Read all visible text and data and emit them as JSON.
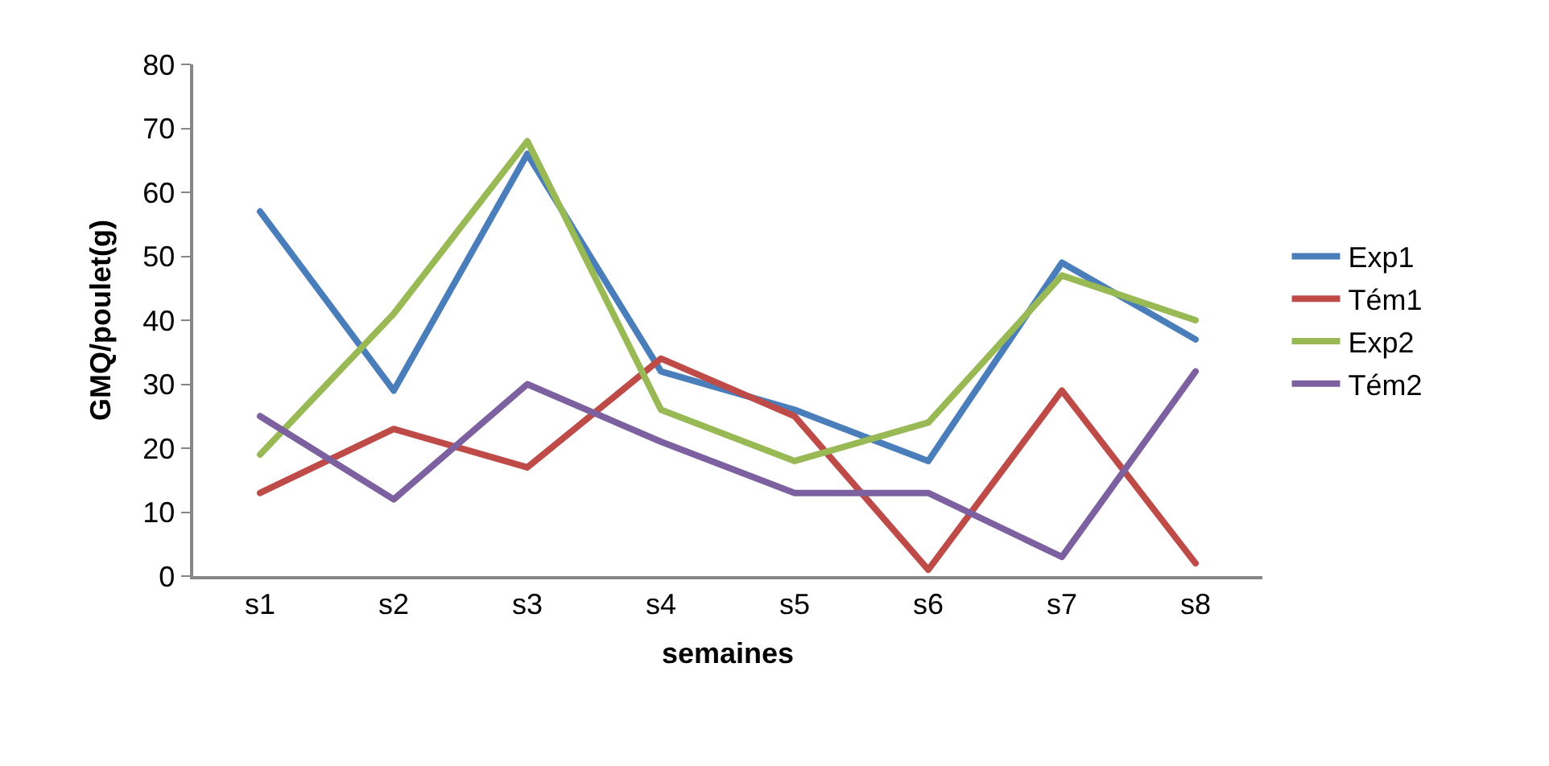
{
  "chart_data": {
    "type": "line",
    "xlabel": "semaines",
    "ylabel": "GMQ/poulet(g)",
    "categories": [
      "s1",
      "s2",
      "s3",
      "s4",
      "s5",
      "s6",
      "s7",
      "s8"
    ],
    "series": [
      {
        "name": "Exp1",
        "color": "#4a7ebb",
        "values": [
          57,
          29,
          66,
          32,
          26,
          18,
          49,
          37
        ]
      },
      {
        "name": "Tém1",
        "color": "#be4b48",
        "values": [
          13,
          23,
          17,
          34,
          25,
          1,
          29,
          2
        ]
      },
      {
        "name": "Exp2",
        "color": "#98b954",
        "values": [
          19,
          41,
          68,
          26,
          18,
          24,
          47,
          40
        ]
      },
      {
        "name": "Tém2",
        "color": "#7d60a0",
        "values": [
          25,
          12,
          30,
          21,
          13,
          13,
          3,
          32
        ]
      }
    ],
    "ylim": [
      0,
      80
    ],
    "yticks": [
      0,
      10,
      20,
      30,
      40,
      50,
      60,
      70,
      80
    ],
    "legend": "right",
    "marker": "none",
    "line_style": "solid"
  }
}
